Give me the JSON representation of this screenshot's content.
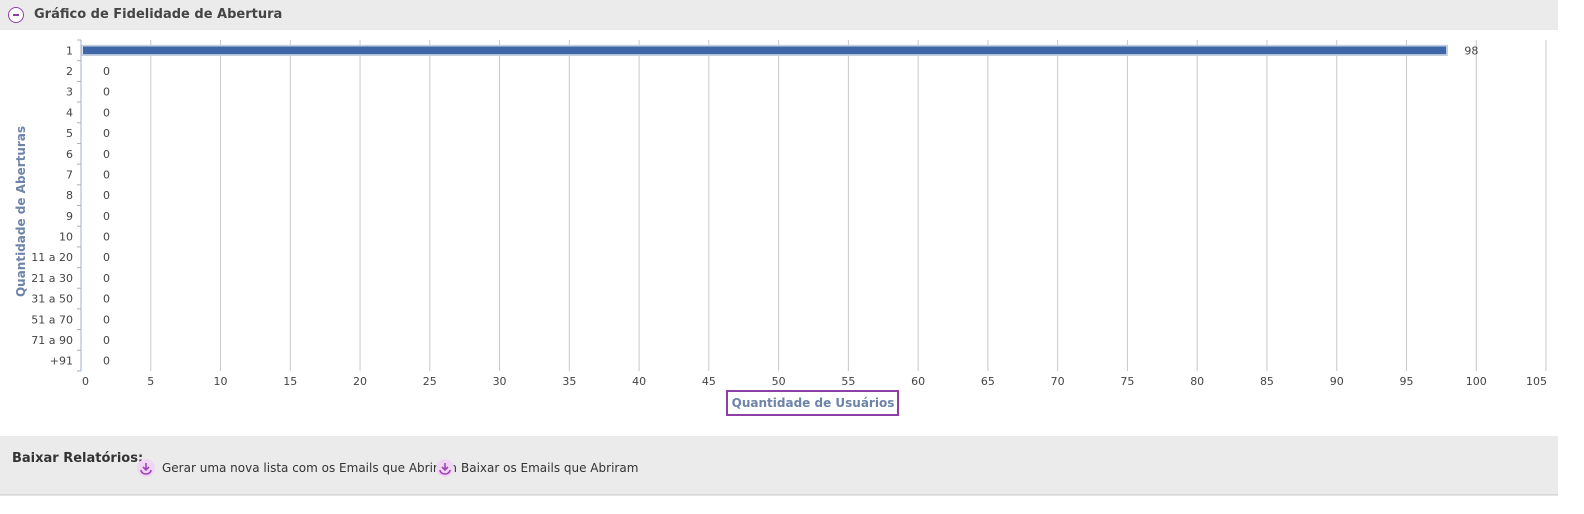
{
  "panel": {
    "title": "Gráfico de Fidelidade de Abertura",
    "collapse_icon": "minus-circle-icon",
    "accent_color": "#8e3fa6"
  },
  "chart_data": {
    "type": "bar",
    "orientation": "horizontal",
    "categories": [
      "1",
      "2",
      "3",
      "4",
      "5",
      "6",
      "7",
      "8",
      "9",
      "10",
      "11 a 20",
      "21 a 30",
      "31 a 50",
      "51 a 70",
      "71 a 90",
      "+91"
    ],
    "values": [
      98,
      0,
      0,
      0,
      0,
      0,
      0,
      0,
      0,
      0,
      0,
      0,
      0,
      0,
      0,
      0
    ],
    "xlabel": "Quantidade de Usuários",
    "ylabel": "Quantidade de Aberturas",
    "xlim": [
      0,
      105
    ],
    "x_ticks": [
      0,
      5,
      10,
      15,
      20,
      25,
      30,
      35,
      40,
      45,
      50,
      55,
      60,
      65,
      70,
      75,
      80,
      85,
      90,
      95,
      100,
      105
    ],
    "grid": "vertical",
    "data_labels": true,
    "bar_color": "#3f67a7",
    "axis_label_color": "#6d83a8"
  },
  "footer": {
    "label": "Baixar Relatórios:",
    "links": [
      {
        "label": "Gerar uma nova lista com os Emails que Abriram",
        "icon": "download-icon"
      },
      {
        "label": "Baixar os Emails que Abriram",
        "icon": "download-icon"
      }
    ]
  }
}
